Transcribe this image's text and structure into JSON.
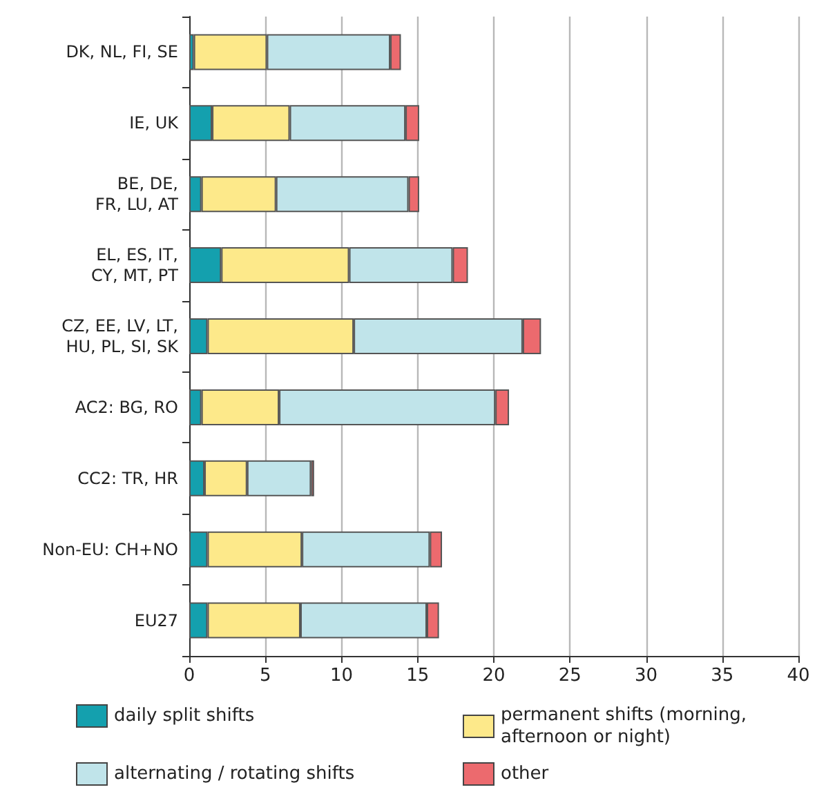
{
  "chart_data": {
    "type": "bar",
    "orientation": "horizontal",
    "stacked": true,
    "categories": [
      "DK, NL, FI, SE",
      "IE, UK",
      "BE, DE,\nFR, LU, AT",
      "EL, ES, IT,\nCY, MT, PT",
      "CZ, EE, LV, LT,\nHU, PL, SI, SK",
      "AC2: BG, RO",
      "CC2: TR, HR",
      "Non-EU: CH+NO",
      "EU27"
    ],
    "series": [
      {
        "name": "daily split shifts",
        "color": "#14a0ae",
        "values": [
          0.3,
          1.5,
          0.8,
          2.1,
          1.2,
          0.8,
          1.0,
          1.2,
          1.2
        ]
      },
      {
        "name": "permanent shifts (morning, afternoon or night)",
        "color": "#fde98a",
        "values": [
          4.8,
          5.1,
          4.9,
          8.4,
          9.6,
          5.1,
          2.8,
          6.2,
          6.1
        ]
      },
      {
        "name": "alternating / rotating shifts",
        "color": "#c0e4ea",
        "values": [
          8.1,
          7.6,
          8.7,
          6.8,
          11.1,
          14.2,
          4.2,
          8.4,
          8.3
        ]
      },
      {
        "name": "other",
        "color": "#ec6a6e",
        "values": [
          0.7,
          0.9,
          0.7,
          1.0,
          1.2,
          0.9,
          0.2,
          0.8,
          0.8
        ]
      }
    ],
    "xlim": [
      0,
      40
    ],
    "xticks": [
      0,
      5,
      10,
      15,
      20,
      25,
      30,
      35,
      40
    ],
    "grid": "x",
    "legend": "bottom"
  }
}
